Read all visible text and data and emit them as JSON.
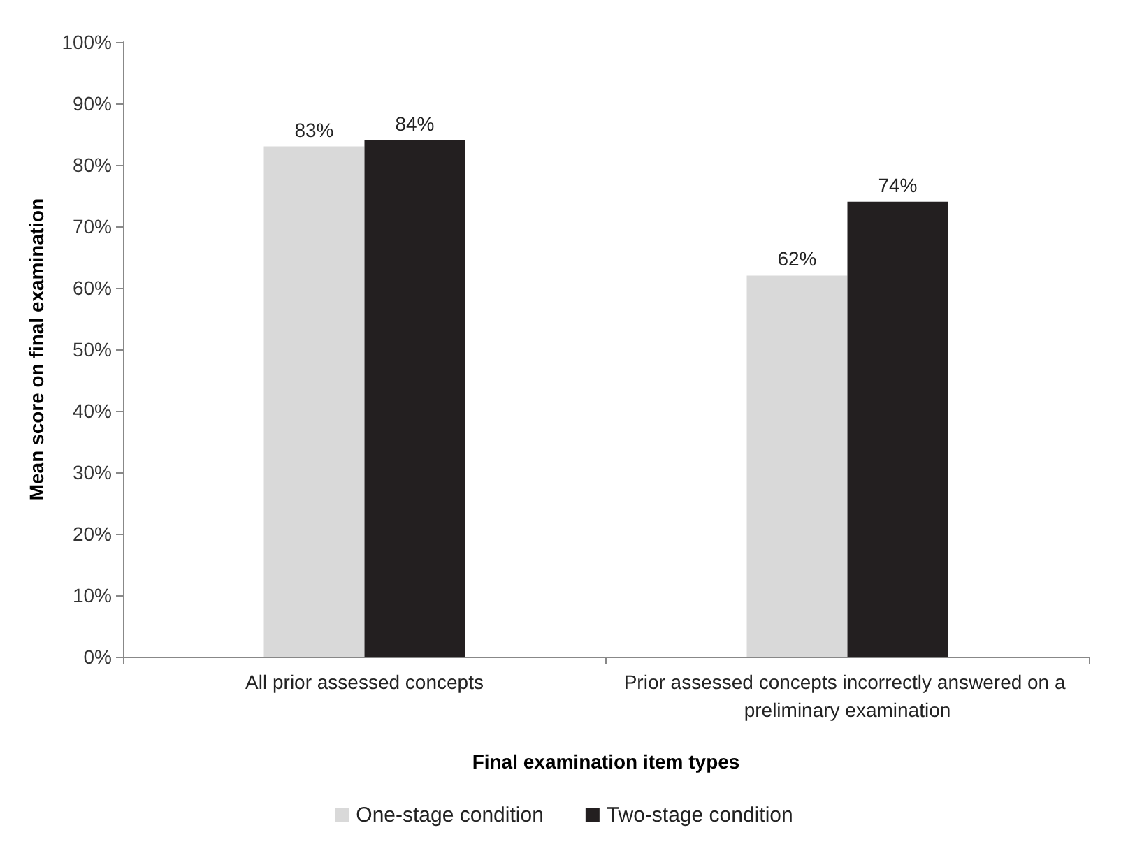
{
  "chart_data": {
    "type": "bar",
    "xlabel": "Final examination item types",
    "ylabel": "Mean score on final examination",
    "categories": [
      "All prior assessed concepts",
      "Prior assessed concepts incorrectly answered on a preliminary examination"
    ],
    "series": [
      {
        "name": "One-stage condition",
        "color": "#d9d9d9",
        "values": [
          83,
          62
        ],
        "value_labels": [
          "83%",
          "62%"
        ]
      },
      {
        "name": "Two-stage condition",
        "color": "#231f20",
        "values": [
          84,
          74
        ],
        "value_labels": [
          "84%",
          "74%"
        ]
      }
    ],
    "ylim": [
      0,
      100
    ],
    "yticks": [
      {
        "value": 0,
        "label": "0%"
      },
      {
        "value": 10,
        "label": "10%"
      },
      {
        "value": 20,
        "label": "20%"
      },
      {
        "value": 30,
        "label": "30%"
      },
      {
        "value": 40,
        "label": "40%"
      },
      {
        "value": 50,
        "label": "50%"
      },
      {
        "value": 60,
        "label": "60%"
      },
      {
        "value": 70,
        "label": "70%"
      },
      {
        "value": 80,
        "label": "80%"
      },
      {
        "value": 90,
        "label": "90%"
      },
      {
        "value": 100,
        "label": "100%"
      }
    ],
    "grid": false,
    "legend": "bottom"
  }
}
